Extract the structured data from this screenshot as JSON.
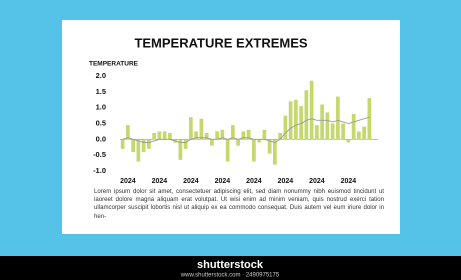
{
  "chart_data": {
    "type": "bar",
    "title": "TEMPERATURE EXTREMES",
    "y_label": "TEMPERATURE",
    "categories": [
      null,
      "2024",
      null,
      null,
      null,
      null,
      null,
      "2024",
      null,
      null,
      null,
      null,
      null,
      "2024",
      null,
      null,
      null,
      null,
      null,
      "2024",
      null,
      null,
      null,
      null,
      null,
      "2024",
      null,
      null,
      null,
      null,
      null,
      "2024",
      null,
      null,
      null,
      null,
      null,
      "2024",
      null,
      null,
      null,
      null,
      null,
      "2024",
      null,
      null,
      null,
      null
    ],
    "series": [
      {
        "type": "bar",
        "color": "#c5d86d",
        "values": [
          -0.3,
          0.45,
          -0.4,
          -0.7,
          -0.4,
          -0.3,
          0.2,
          0.25,
          0.25,
          0.2,
          -0.1,
          -0.65,
          -0.3,
          0.7,
          0.25,
          0.65,
          0.2,
          -0.2,
          0.25,
          0.3,
          -0.7,
          0.45,
          -0.2,
          0.25,
          0.3,
          -0.7,
          -0.1,
          0.3,
          -0.45,
          -0.8,
          0.2,
          0.75,
          1.2,
          1.25,
          1.05,
          1.55,
          1.85,
          0.45,
          1.1,
          0.85,
          0.5,
          1.35,
          0.5,
          -0.1,
          0.8,
          0.25,
          0.4,
          1.3
        ]
      },
      {
        "type": "line",
        "color": "#9a9a9a",
        "values": [
          0,
          0.05,
          0,
          -0.05,
          -0.1,
          -0.1,
          -0.05,
          0,
          0,
          0,
          -0.05,
          -0.1,
          -0.1,
          0,
          0.05,
          0.05,
          0.05,
          0,
          0,
          0.05,
          0,
          0.05,
          0,
          0.05,
          0.05,
          0,
          0,
          0,
          -0.05,
          -0.1,
          0,
          0.2,
          0.35,
          0.45,
          0.5,
          0.6,
          0.65,
          0.6,
          0.6,
          0.6,
          0.55,
          0.6,
          0.55,
          0.5,
          0.55,
          0.6,
          0.65,
          0.7
        ]
      }
    ],
    "ylim": [
      -1,
      2
    ],
    "yticks": [
      {
        "value": -1,
        "label": "-1.0"
      },
      {
        "value": -0.5,
        "label": "-0.5"
      },
      {
        "value": 0,
        "label": "0.0"
      },
      {
        "value": 0.5,
        "label": "0.5"
      },
      {
        "value": 1,
        "label": "1.0"
      },
      {
        "value": 1.5,
        "label": "1.5"
      },
      {
        "value": 2,
        "label": "2.0"
      }
    ],
    "grid": false,
    "description": "Lorem ipsum dolor sit amet, consectetuer adipiscing elit, sed diam nonummy nibh euismod tincidunt ut laoreet dolore magna aliquam erat volutpat. Ut wisi enim ad minim veniam, quis nostrud exerci tation ullamcorper suscipit lobortis nisl ut aliquip ex ea commodo consequat. Duis autem vel eum iriure dolor in hen-"
  },
  "watermark": {
    "brand": "shutterstock",
    "caption": "www.shutterstock.com · 2490975175"
  }
}
